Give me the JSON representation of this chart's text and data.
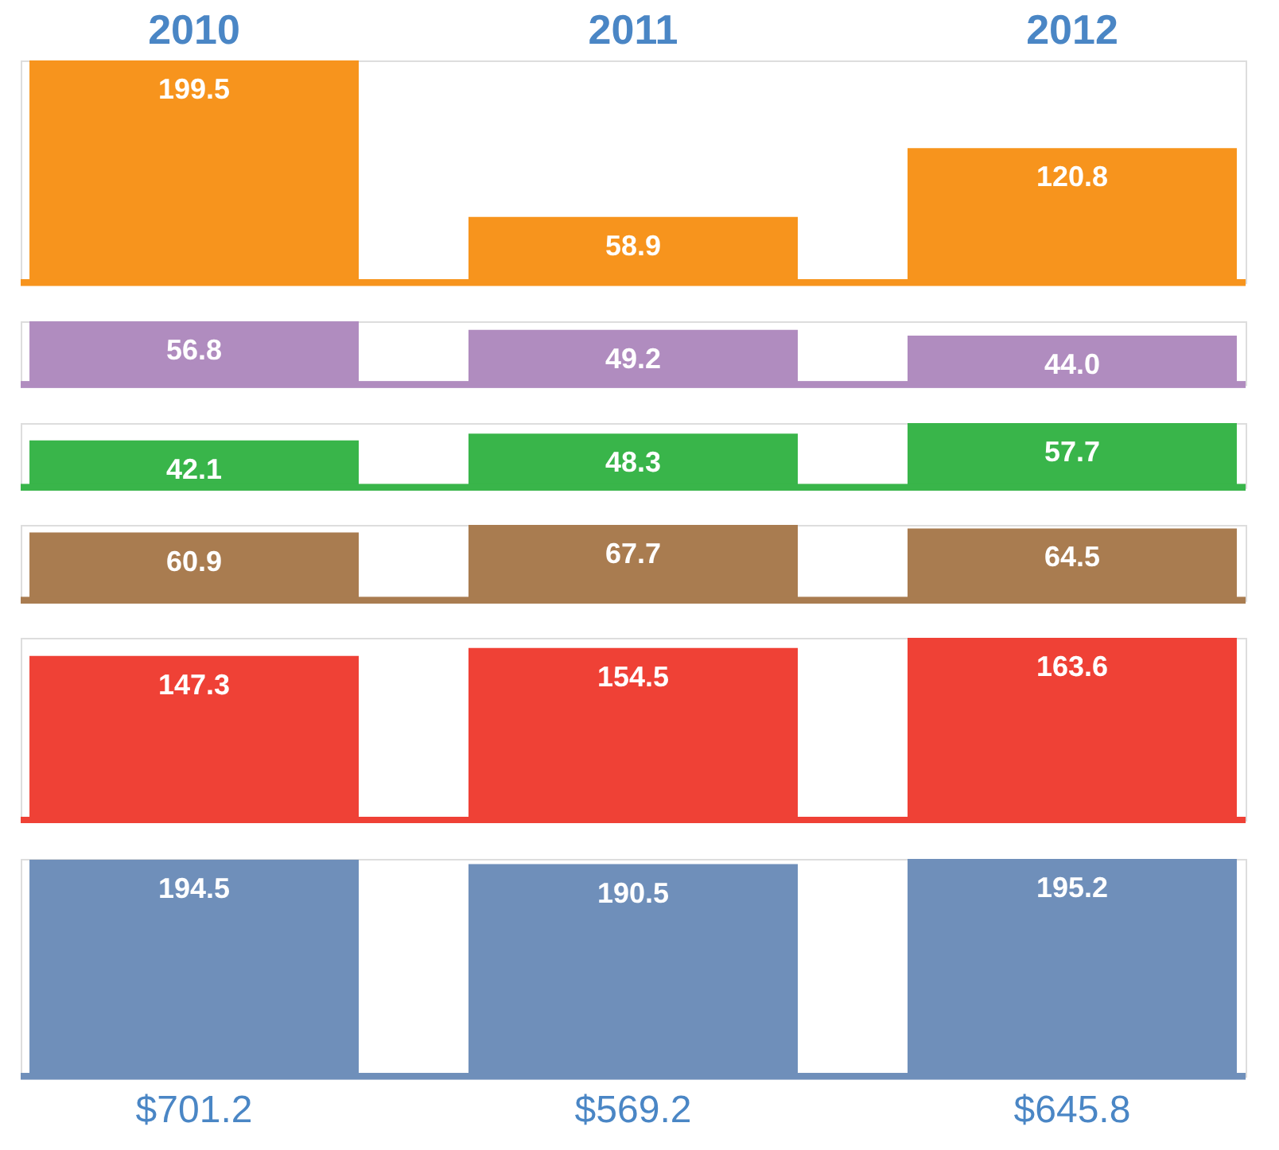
{
  "chart_data": [
    {
      "type": "bar",
      "categories": [
        "2010",
        "2011",
        "2012"
      ],
      "values": [
        199.5,
        58.9,
        120.8
      ],
      "color": "#f7941d",
      "data_labels": true,
      "tick_labels": "x"
    },
    {
      "type": "bar",
      "categories": [
        "2010",
        "2011",
        "2012"
      ],
      "values": [
        56.8,
        49.2,
        44.0
      ],
      "value_labels": [
        "56.8",
        "49.2",
        "44.0"
      ],
      "color": "#b08cbf",
      "tick_labels": false
    },
    {
      "type": "bar",
      "categories": [
        "2010",
        "2011",
        "2012"
      ],
      "values": [
        42.1,
        48.3,
        57.7
      ],
      "color": "#39b54a",
      "data_labels": true,
      "tick_labels": false
    },
    {
      "type": "bar",
      "categories": [
        "2010",
        "2011",
        "2012"
      ],
      "values": [
        60.9,
        67.7,
        64.5
      ],
      "color": "#a97c50",
      "data_labels": true,
      "tick_labels": false
    },
    {
      "type": "bar",
      "categories": [
        "2010",
        "2011",
        "2012"
      ],
      "values": [
        147.3,
        154.5,
        163.6
      ],
      "color": "#ef4136",
      "data_labels": true,
      "tick_labels": false
    },
    {
      "type": "bar",
      "categories": [
        "2010",
        "2011",
        "2012"
      ],
      "values": [
        194.5,
        190.5,
        195.2
      ],
      "color": "#6f8fba",
      "data_labels": true,
      "tick_labels": false,
      "annotations": [
        "$701.2",
        "$569.2",
        "$645.8"
      ]
    }
  ]
}
